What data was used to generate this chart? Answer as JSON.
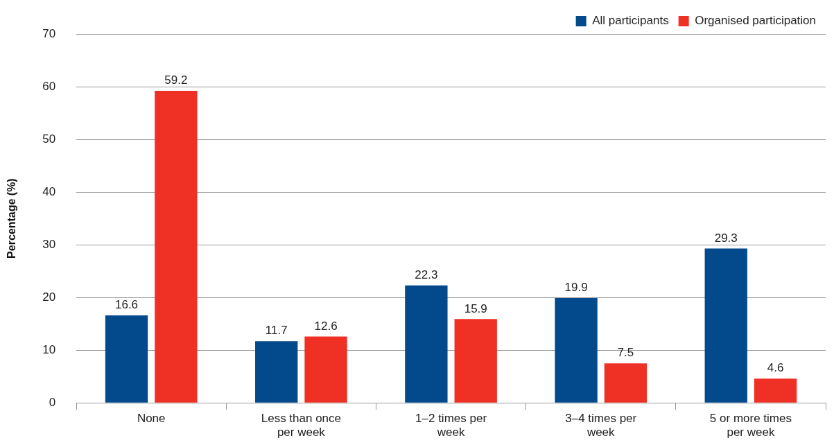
{
  "chart_data": {
    "type": "bar",
    "ylabel": "Percentage (%)",
    "categories": [
      "None",
      "Less than once per week",
      "1–2 times per week",
      "3–4 times per week",
      "5 or more times per week"
    ],
    "series": [
      {
        "name": "All participants",
        "color": "#034a8d",
        "values": [
          16.6,
          11.7,
          22.3,
          19.9,
          29.3
        ]
      },
      {
        "name": "Organised participation",
        "color": "#ee3124",
        "values": [
          59.2,
          12.6,
          15.9,
          7.5,
          4.6
        ]
      }
    ],
    "ylim": [
      0,
      70
    ],
    "yticks": [
      0,
      10,
      20,
      30,
      40,
      50,
      60,
      70
    ],
    "grid": "y",
    "legend": "top right",
    "data_labels": true
  }
}
